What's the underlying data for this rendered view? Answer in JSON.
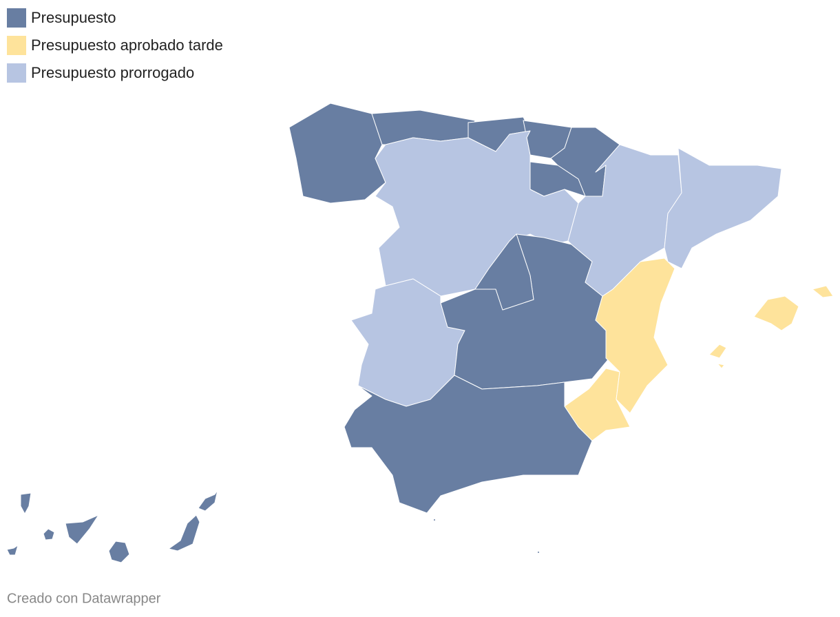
{
  "legend": [
    {
      "label": "Presupuesto",
      "color": "#687ea2"
    },
    {
      "label": "Presupuesto aprobado tarde",
      "color": "#fee39b"
    },
    {
      "label": "Presupuesto prorrogado",
      "color": "#b7c5e2"
    }
  ],
  "footer": "Creado con Datawrapper"
}
